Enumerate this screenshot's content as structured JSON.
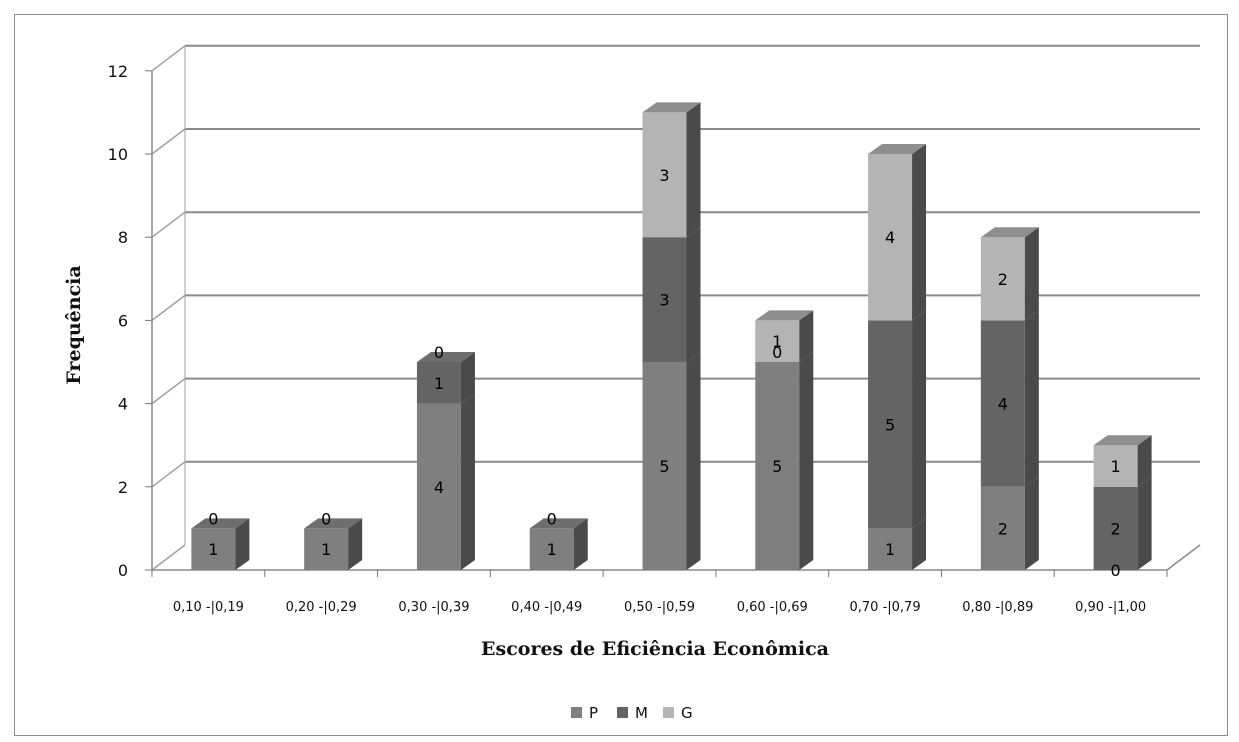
{
  "chart_data": {
    "type": "bar",
    "stacked": true,
    "three_d": true,
    "title": "",
    "xlabel": "Escores de Eficiência Econômica",
    "ylabel": "Frequência",
    "ylim": [
      0,
      12
    ],
    "yticks": [
      "0",
      "2",
      "4",
      "6",
      "8",
      "10",
      "12"
    ],
    "grid": true,
    "legend_position": "bottom",
    "categories": [
      "0,10 -|0,19",
      "0,20 -|0,29",
      "0,30 -|0,39",
      "0,40 -|0,49",
      "0,50 -|0,59",
      "0,60 -|0,69",
      "0,70 -|0,79",
      "0,80 -|0,89",
      "0,90 -|1,00"
    ],
    "series": [
      {
        "name": "P",
        "values": [
          1,
          1,
          4,
          1,
          5,
          5,
          1,
          2,
          0
        ],
        "color": "#7f7f7f"
      },
      {
        "name": "M",
        "values": [
          0,
          0,
          1,
          0,
          3,
          0,
          5,
          4,
          2
        ],
        "color": "#646464"
      },
      {
        "name": "G",
        "values": [
          0,
          0,
          0,
          0,
          3,
          1,
          4,
          2,
          1
        ],
        "color": "#b4b4b4"
      }
    ],
    "data_labels": [
      [
        "1",
        "0",
        ""
      ],
      [
        "1",
        "0",
        ""
      ],
      [
        "4",
        "1",
        "0"
      ],
      [
        "1",
        "0",
        ""
      ],
      [
        "5",
        "3",
        "3"
      ],
      [
        "5",
        "0",
        "1"
      ],
      [
        "1",
        "5",
        "4"
      ],
      [
        "2",
        "4",
        "2"
      ],
      [
        "0",
        "2",
        "1"
      ]
    ]
  }
}
